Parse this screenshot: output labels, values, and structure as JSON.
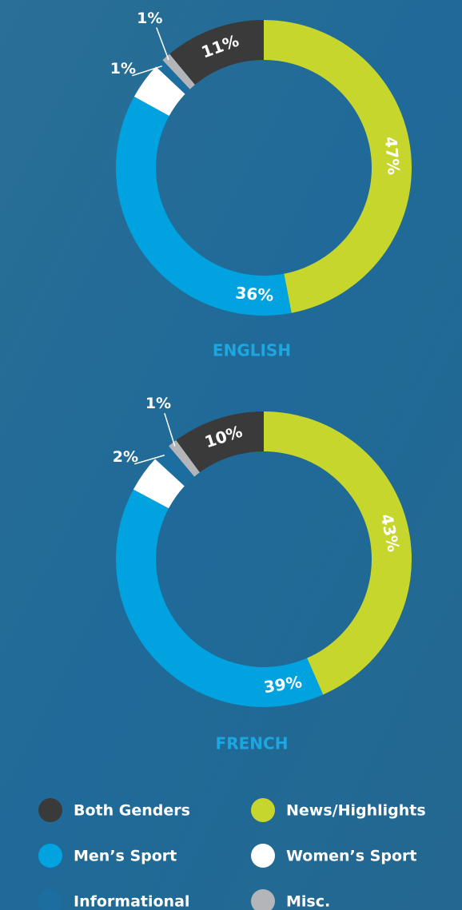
{
  "chart_data": [
    {
      "type": "pie",
      "title": "ENGLISH",
      "categories": [
        "News/Highlights",
        "Men’s Sport",
        "Women’s Sport",
        "Informational",
        "Misc.",
        "Both Genders"
      ],
      "values": [
        47,
        36,
        4,
        1,
        1,
        11
      ],
      "value_labels": [
        "47%",
        "36%",
        "4%",
        "1%",
        "1%",
        "11%"
      ],
      "colors": [
        "#c6d62c",
        "#00a3df",
        "#ffffff",
        "#1b6e9f",
        "#b4b5b8",
        "#3a3a3b"
      ]
    },
    {
      "type": "pie",
      "title": "FRENCH",
      "categories": [
        "News/Highlights",
        "Men’s Sport",
        "Women’s Sport",
        "Informational",
        "Misc.",
        "Both Genders"
      ],
      "values": [
        43,
        39,
        4,
        2,
        1,
        10
      ],
      "value_labels": [
        "43%",
        "39%",
        "4%",
        "2%",
        "1%",
        "10%"
      ],
      "colors": [
        "#c6d62c",
        "#00a3df",
        "#ffffff",
        "#1b6e9f",
        "#b4b5b8",
        "#3a3a3b"
      ]
    }
  ]
}
